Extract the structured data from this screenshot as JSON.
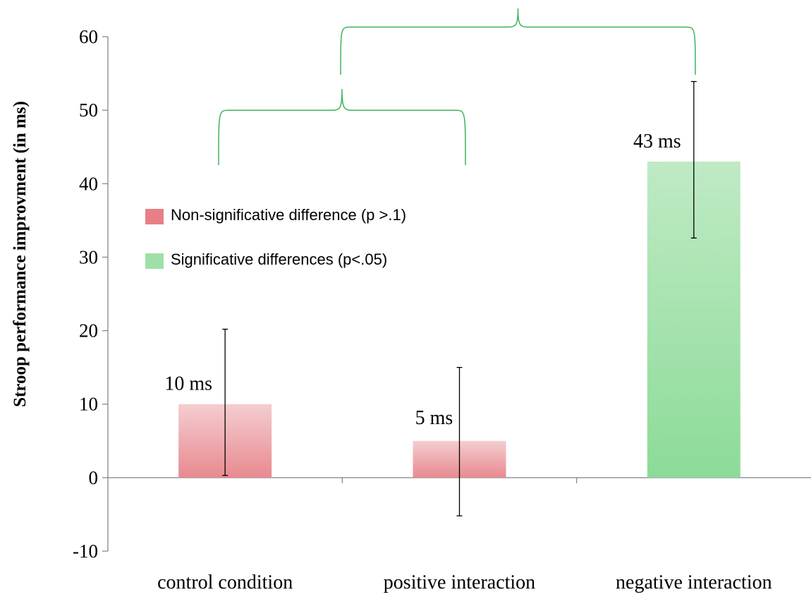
{
  "chart_data": {
    "type": "bar",
    "title": "",
    "xlabel": "",
    "ylabel": "Stroop performance improvment (in ms)",
    "ylim": [
      -10,
      60
    ],
    "yticks": [
      -10,
      0,
      10,
      20,
      30,
      40,
      50,
      60
    ],
    "grid": false,
    "categories": [
      "control condition",
      "positive interaction",
      "negative interaction"
    ],
    "values": [
      10,
      5,
      43
    ],
    "error_bars": [
      {
        "low": 0.3,
        "high": 20.2
      },
      {
        "low": -5.2,
        "high": 15.0
      },
      {
        "low": 32.6,
        "high": 53.9
      }
    ],
    "data_labels": [
      "10 ms",
      "5 ms",
      "43 ms"
    ],
    "bar_groups": [
      "non-significant",
      "non-significant",
      "significant"
    ],
    "legend": {
      "placement": "center-left",
      "entries": [
        {
          "label": "Non-significative difference (p >.1)",
          "color": "#e87f86"
        },
        {
          "label": "Significative differences (p<.05)",
          "color": "#9fe0a8"
        }
      ]
    },
    "colors": {
      "non_significant_top": "#f4cdd0",
      "non_significant_bottom": "#e88a90",
      "significant_top": "#bfeac4",
      "significant_bottom": "#8cdb98",
      "brace": "#3fb35a",
      "axis": "#808080",
      "error_bar": "#000000"
    }
  }
}
